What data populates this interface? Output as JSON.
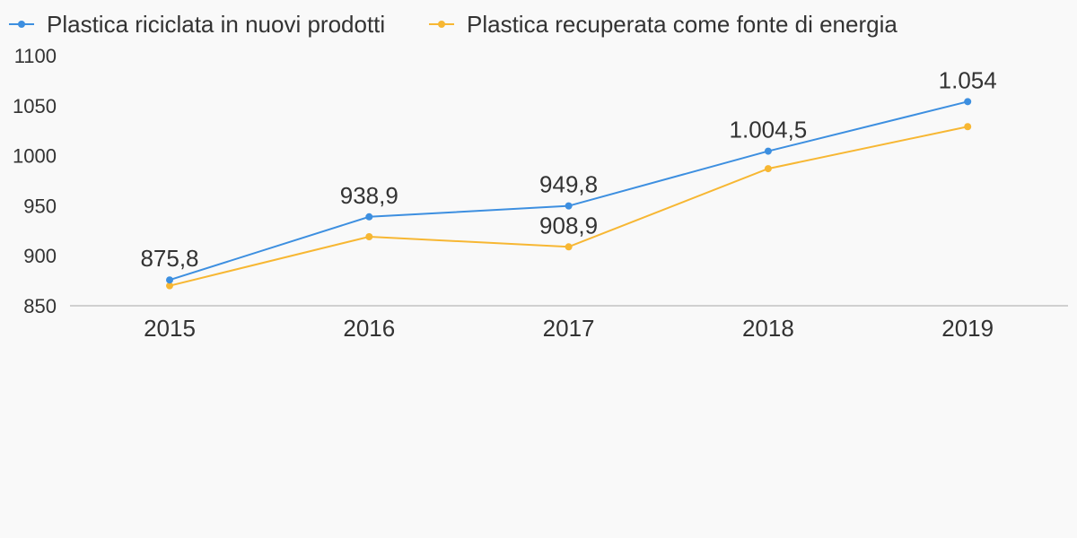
{
  "chart_data": {
    "type": "line",
    "categories": [
      "2015",
      "2016",
      "2017",
      "2018",
      "2019"
    ],
    "series": [
      {
        "name": "Plastica riciclata in nuovi prodotti",
        "color": "#3d8fe0",
        "values": [
          875.8,
          938.9,
          949.8,
          1004.5,
          1054
        ],
        "labels": [
          "875,8",
          "938,9",
          "949,8",
          "1.004,5",
          "1.054"
        ]
      },
      {
        "name": "Plastica recuperata come fonte di energia",
        "color": "#f7b733",
        "values": [
          870,
          919,
          908.9,
          987,
          1029
        ],
        "labels": [
          "",
          "",
          "908,9",
          "",
          ""
        ]
      }
    ],
    "yticks": [
      "850",
      "900",
      "950",
      "1000",
      "1050",
      "1100"
    ],
    "ylim": [
      850,
      1100
    ],
    "legend_position": "top-left",
    "grid": false
  }
}
